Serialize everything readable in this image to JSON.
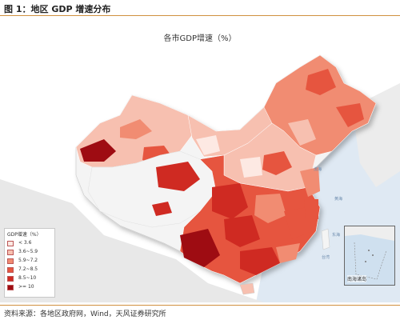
{
  "header": {
    "title": "图 1：地区 GDP 增速分布"
  },
  "map": {
    "title": "各市GDP增速（%）",
    "sea_labels": [
      "渤海",
      "黄海",
      "东海",
      "台湾"
    ],
    "inset_label": "南海诸岛"
  },
  "legend": {
    "title": "GDP增速（%）",
    "items": [
      {
        "label": "< 3.6",
        "color": "#fde9e3"
      },
      {
        "label": "3.6~5.9",
        "color": "#f7c0b0"
      },
      {
        "label": "5.9~7.2",
        "color": "#f18c72"
      },
      {
        "label": "7.2~8.5",
        "color": "#e6553f"
      },
      {
        "label": "8.5~10",
        "color": "#cf2a22"
      },
      {
        "label": ">= 10",
        "color": "#9e0c12"
      }
    ]
  },
  "footer": {
    "source": "资料来源：各地区政府网，Wind，天风证券研究所"
  },
  "colors": {
    "accent_rule": "#d0903f",
    "sea": "#cfe0ef",
    "neutral_land": "#f4f4f4"
  }
}
